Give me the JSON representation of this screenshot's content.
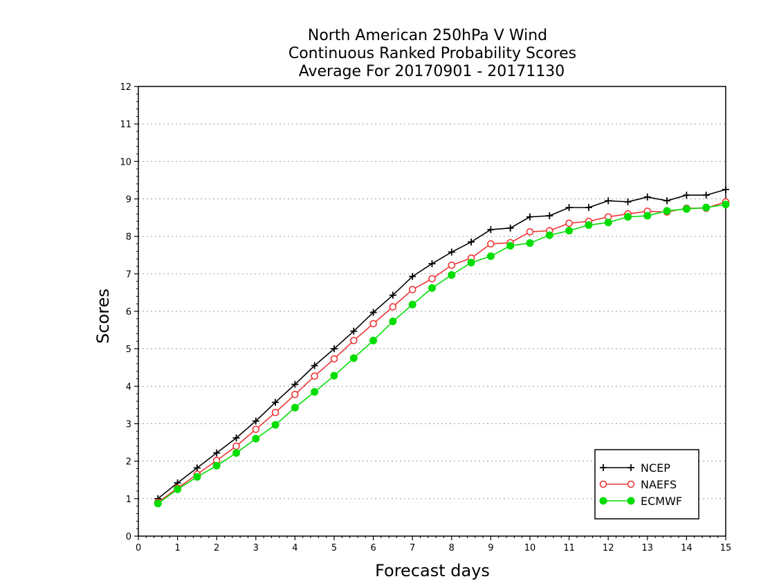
{
  "chart_data": {
    "type": "line",
    "title": [
      "North American 250hPa V Wind",
      "Continuous Ranked Probability Scores",
      "Average For 20170901 - 20171130"
    ],
    "xlabel": "Forecast days",
    "ylabel": "Scores",
    "xlim": [
      0,
      15
    ],
    "ylim": [
      0,
      12
    ],
    "xticks": [
      0,
      1,
      2,
      3,
      4,
      5,
      6,
      7,
      8,
      9,
      10,
      11,
      12,
      13,
      14,
      15
    ],
    "yticks": [
      0,
      1,
      2,
      3,
      4,
      5,
      6,
      7,
      8,
      9,
      10,
      11,
      12
    ],
    "grid": "horizontal-dotted",
    "legend_position": "bottom-right",
    "x": [
      0.5,
      1,
      1.5,
      2,
      2.5,
      3,
      3.5,
      4,
      4.5,
      5,
      5.5,
      6,
      6.5,
      7,
      7.5,
      8,
      8.5,
      9,
      9.5,
      10,
      10.5,
      11,
      11.5,
      12,
      12.5,
      13,
      13.5,
      14,
      14.5,
      15
    ],
    "series": [
      {
        "name": "NCEP",
        "color": "#000000",
        "marker": "plus",
        "values": [
          1.0,
          1.42,
          1.82,
          2.22,
          2.62,
          3.07,
          3.57,
          4.05,
          4.55,
          5.0,
          5.47,
          5.97,
          6.43,
          6.93,
          7.27,
          7.58,
          7.85,
          8.18,
          8.22,
          8.52,
          8.55,
          8.77,
          8.77,
          8.95,
          8.92,
          9.05,
          8.95,
          9.1,
          9.1,
          9.25
        ]
      },
      {
        "name": "NAEFS",
        "color": "#ee3333",
        "marker": "open-circle",
        "values": [
          0.9,
          1.28,
          1.65,
          2.02,
          2.4,
          2.85,
          3.3,
          3.78,
          4.27,
          4.73,
          5.22,
          5.67,
          6.12,
          6.58,
          6.87,
          7.23,
          7.42,
          7.8,
          7.83,
          8.12,
          8.15,
          8.35,
          8.4,
          8.52,
          8.6,
          8.67,
          8.65,
          8.75,
          8.75,
          8.92
        ]
      },
      {
        "name": "ECMWF",
        "color": "#00dd00",
        "marker": "filled-circle",
        "values": [
          0.87,
          1.25,
          1.58,
          1.88,
          2.22,
          2.6,
          2.97,
          3.43,
          3.85,
          4.28,
          4.75,
          5.22,
          5.73,
          6.18,
          6.62,
          6.97,
          7.3,
          7.47,
          7.75,
          7.82,
          8.03,
          8.15,
          8.3,
          8.37,
          8.52,
          8.55,
          8.68,
          8.73,
          8.77,
          8.85
        ]
      }
    ]
  }
}
